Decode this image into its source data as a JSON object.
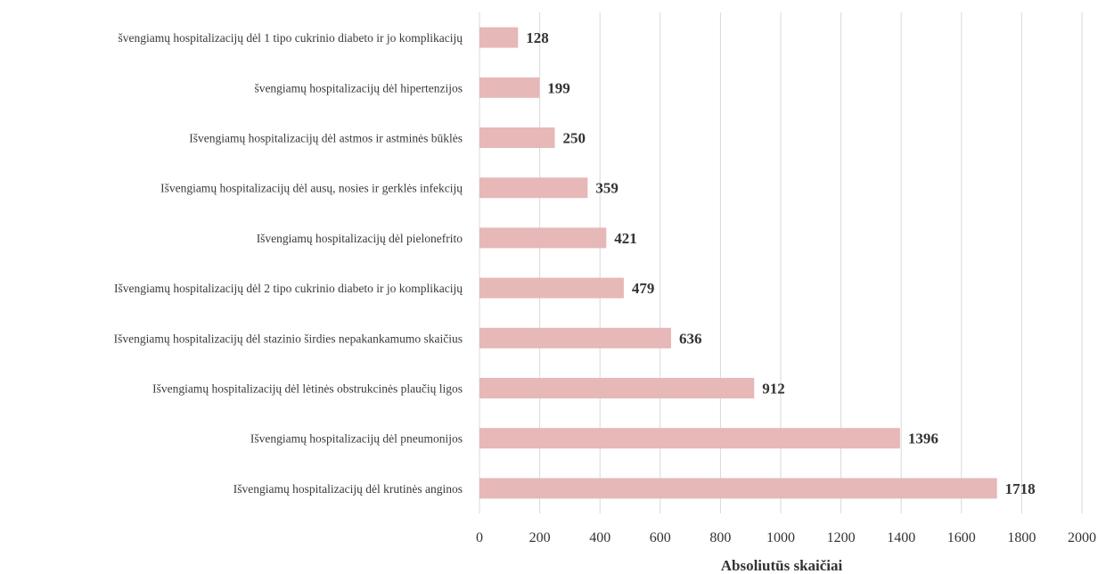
{
  "chart_data": {
    "type": "bar",
    "orientation": "horizontal",
    "categories": [
      "švengiamų hospitalizacijų dėl 1 tipo cukrinio diabeto ir jo komplikacijų",
      "švengiamų hospitalizacijų dėl hipertenzijos",
      "Išvengiamų hospitalizacijų dėl astmos ir astminės būklės",
      "Išvengiamų hospitalizacijų dėl ausų, nosies ir gerklės infekcijų",
      "Išvengiamų hospitalizacijų dėl pielonefrito",
      "Išvengiamų hospitalizacijų dėl 2 tipo cukrinio diabeto ir jo komplikacijų",
      "Išvengiamų hospitalizacijų dėl stazinio širdies nepakankamumo skaičius",
      "Išvengiamų hospitalizacijų dėl lėtinės obstrukcinės plaučių ligos",
      "Išvengiamų hospitalizacijų dėl pneumonijos",
      "Išvengiamų hospitalizacijų dėl krutinės anginos"
    ],
    "values": [
      128,
      199,
      250,
      359,
      421,
      479,
      636,
      912,
      1396,
      1718
    ],
    "value_labels": [
      "128",
      "199",
      "250",
      "359",
      "421",
      "479",
      "636",
      "912",
      "1396",
      "1718"
    ],
    "xlabel": "Absoliutūs skaičiai",
    "xlim": [
      0,
      2000
    ],
    "xticks": [
      "0",
      "200",
      "400",
      "600",
      "800",
      "1000",
      "1200",
      "1400",
      "1600",
      "1800",
      "2000"
    ],
    "grid": "vertical",
    "legend": "none",
    "bar_color": "#e6b8b7",
    "grid_color": "#d9d9d9"
  }
}
